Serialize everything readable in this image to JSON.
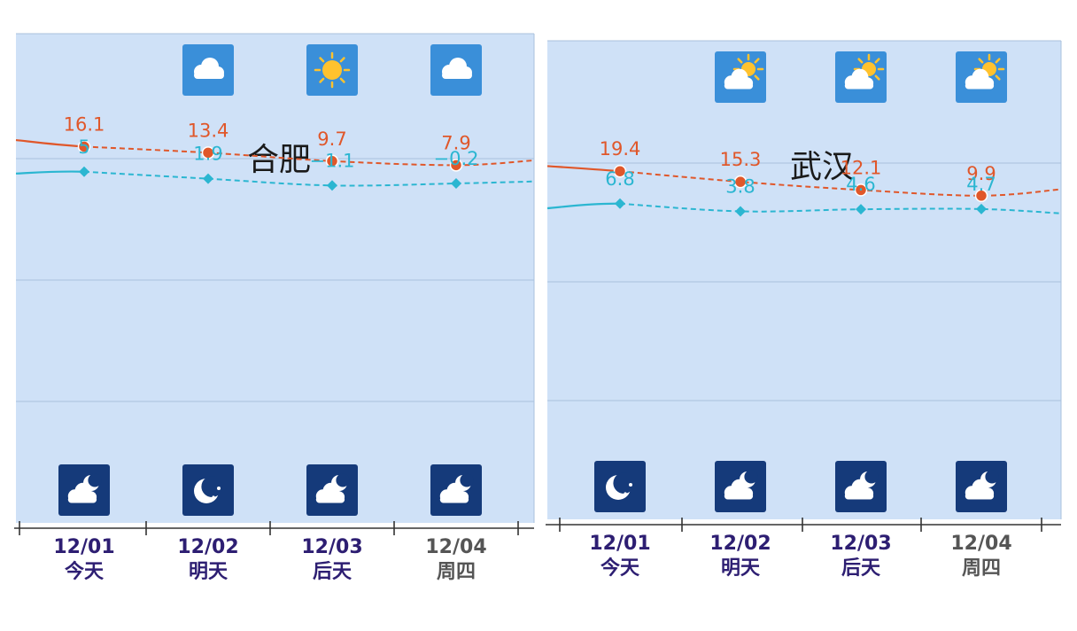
{
  "colors": {
    "plot_bg": "#cfe1f7",
    "grid": "#a9c1dd",
    "high_line": "#e0572a",
    "low_line": "#2bb6d1",
    "day_icon_bg": "#3a8fd9",
    "night_icon_bg": "#153a7a",
    "date_strong": "#2d1e72",
    "date_muted": "#555555"
  },
  "chart_data": [
    {
      "type": "line",
      "title": "合肥",
      "categories": [
        "12/01",
        "12/02",
        "12/03",
        "12/04"
      ],
      "day_labels": [
        "今天",
        "明天",
        "后天",
        "周四"
      ],
      "day_icons": [
        "",
        "cloudy-icon",
        "sunny-icon",
        "cloudy-icon"
      ],
      "night_icons": [
        "partly-cloudy-night-icon",
        "clear-night-icon",
        "partly-cloudy-night-icon",
        "partly-cloudy-night-icon"
      ],
      "series": [
        {
          "key": "high",
          "values": [
            16.1,
            13.4,
            9.7,
            7.9
          ]
        },
        {
          "key": "low",
          "values": [
            5,
            1.9,
            -1.1,
            -0.2
          ]
        }
      ],
      "high_labels": [
        "16.1",
        "13.4",
        "9.7",
        "7.9"
      ],
      "low_labels": [
        "5",
        "1.9",
        "−1.1",
        "−0.2"
      ],
      "edge_values": {
        "high": [
          19.0,
          10.0
        ],
        "low": [
          4.2,
          0.7
        ]
      },
      "ylim": [
        -5,
        25
      ],
      "grid": true
    },
    {
      "type": "line",
      "title": "武汉",
      "categories": [
        "12/01",
        "12/02",
        "12/03",
        "12/04"
      ],
      "day_labels": [
        "今天",
        "明天",
        "后天",
        "周四"
      ],
      "day_icons": [
        "",
        "partly-cloudy-day-icon",
        "partly-cloudy-day-icon",
        "partly-cloudy-day-icon"
      ],
      "night_icons": [
        "clear-night-icon",
        "partly-cloudy-night-icon",
        "partly-cloudy-night-icon",
        "partly-cloudy-night-icon"
      ],
      "series": [
        {
          "key": "high",
          "values": [
            19.4,
            15.3,
            12.1,
            9.9
          ]
        },
        {
          "key": "low",
          "values": [
            6.8,
            3.8,
            4.6,
            4.7
          ]
        }
      ],
      "high_labels": [
        "19.4",
        "15.3",
        "12.1",
        "9.9"
      ],
      "low_labels": [
        "6.8",
        "3.8",
        "4.6",
        "4.7"
      ],
      "edge_values": {
        "high": [
          21.4,
          12.4
        ],
        "low": [
          5.0,
          3.0
        ]
      },
      "ylim": [
        -5,
        25
      ],
      "grid": true
    }
  ]
}
